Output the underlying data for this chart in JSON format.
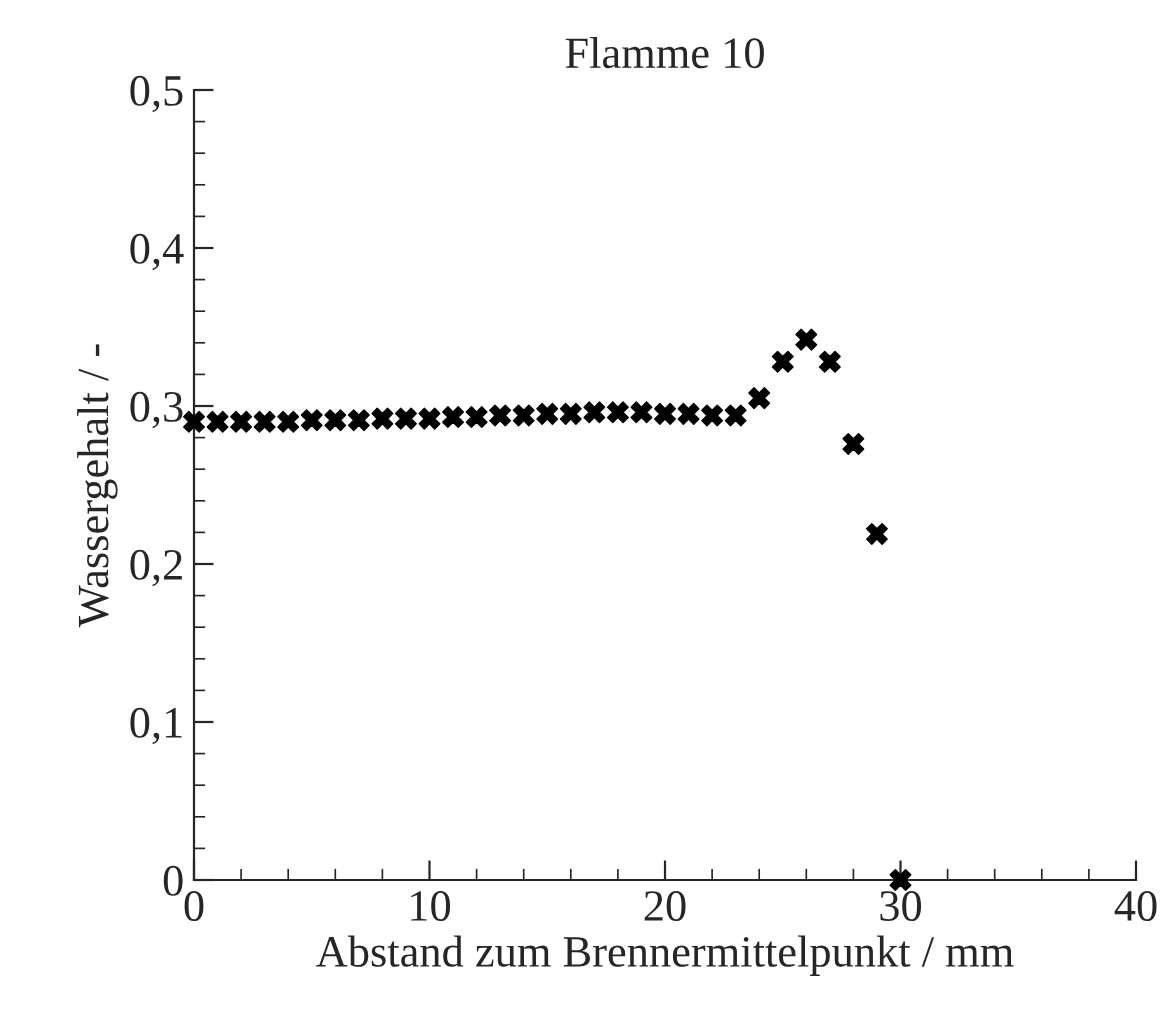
{
  "chart_data": {
    "type": "scatter",
    "title": "Flamme 10",
    "xlabel": "Abstand zum Brennermittelpunkt / mm",
    "ylabel": "Wassergehalt / -",
    "x": [
      0,
      1,
      2,
      3,
      4,
      5,
      6,
      7,
      8,
      9,
      10,
      11,
      12,
      13,
      14,
      15,
      16,
      17,
      18,
      19,
      20,
      21,
      22,
      23,
      24,
      25,
      26,
      27,
      28,
      29,
      30
    ],
    "series": [
      {
        "color": "#000000",
        "values": [
          0.29,
          0.29,
          0.29,
          0.29,
          0.29,
          0.291,
          0.291,
          0.291,
          0.292,
          0.292,
          0.292,
          0.293,
          0.293,
          0.294,
          0.294,
          0.295,
          0.295,
          0.296,
          0.296,
          0.296,
          0.295,
          0.295,
          0.294,
          0.294,
          0.305,
          0.328,
          0.342,
          0.328,
          0.276,
          0.219,
          0.0
        ]
      }
    ],
    "xlim": [
      0,
      40
    ],
    "xticks": [
      0,
      10,
      20,
      30,
      40
    ],
    "ylim": [
      0,
      0.5
    ],
    "yticks": [
      {
        "value": 0,
        "label": "0"
      },
      {
        "value": 0.1,
        "label": "0,1"
      },
      {
        "value": 0.2,
        "label": "0,2"
      },
      {
        "value": 0.3,
        "label": "0,3"
      },
      {
        "value": 0.4,
        "label": "0,4"
      },
      {
        "value": 0.5,
        "label": "0,5"
      }
    ],
    "grid": false,
    "legend": false,
    "marker": "cross"
  }
}
